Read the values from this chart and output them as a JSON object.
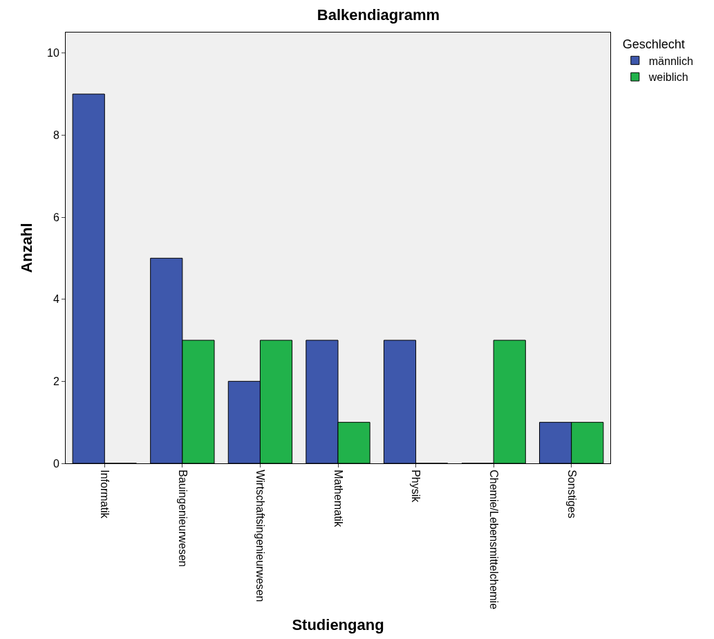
{
  "chart_data": {
    "type": "bar",
    "title": "Balkendiagramm",
    "xlabel": "Studiengang",
    "ylabel": "Anzahl",
    "legend_title": "Geschlecht",
    "categories": [
      "Informatik",
      "Bauingenieurwesen",
      "Wirtschaftsingenieurwesen",
      "Mathematik",
      "Physik",
      "Chemie/Lebensmittelchemie",
      "Sonstiges"
    ],
    "series": [
      {
        "name": "männlich",
        "color": "#3e58ac",
        "values": [
          9,
          5,
          2,
          3,
          3,
          0,
          1
        ]
      },
      {
        "name": "weiblich",
        "color": "#21b24b",
        "values": [
          0,
          3,
          3,
          1,
          0,
          3,
          1
        ]
      }
    ],
    "ylim": [
      0,
      10.5
    ],
    "yticks": [
      0,
      2,
      4,
      6,
      8,
      10
    ],
    "grid": false,
    "legend": "top right"
  }
}
